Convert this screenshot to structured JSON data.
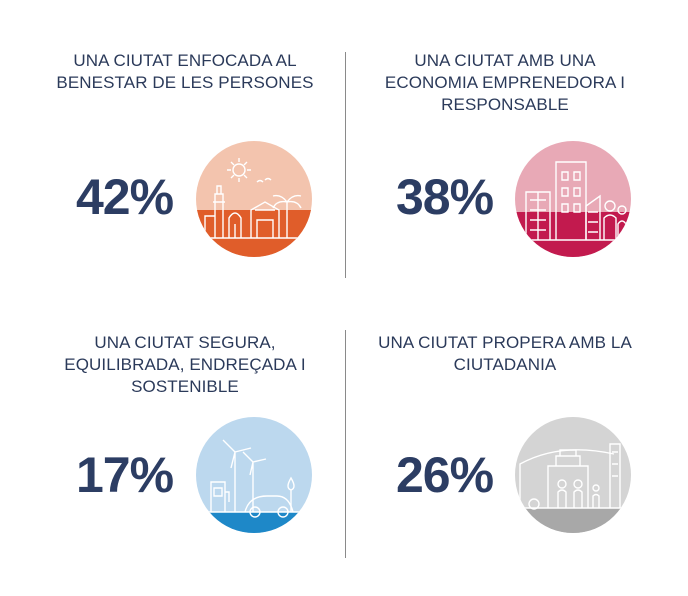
{
  "cards": [
    {
      "heading": "UNA CIUTAT ENFOCADA AL\nBENESTAR DE LES PERSONES",
      "percent": "42%",
      "illustration": "city-beach-illustration-icon",
      "top_color": "#f3c4ae",
      "bottom_color": "#e05d2a"
    },
    {
      "heading": "UNA CIUTAT AMB UNA\nECONOMIA EMPRENEDORA I\nRESPONSABLE",
      "percent": "38%",
      "illustration": "city-business-illustration-icon",
      "top_color": "#e8a9b6",
      "bottom_color": "#c21a4e"
    },
    {
      "heading": "UNA CIUTAT SEGURA,\nEQUILIBRADA, ENDREÇADA I\nSOSTENIBLE",
      "percent": "17%",
      "illustration": "wind-turbine-illustration-icon",
      "top_color": "#bcd8ee",
      "bottom_color": "#1e88c8"
    },
    {
      "heading": "UNA CIUTAT PROPERA AMB LA\nCIUTADANIA",
      "percent": "26%",
      "illustration": "citizens-illustration-icon",
      "top_color": "#d4d4d4",
      "bottom_color": "#a8a8a8"
    }
  ]
}
